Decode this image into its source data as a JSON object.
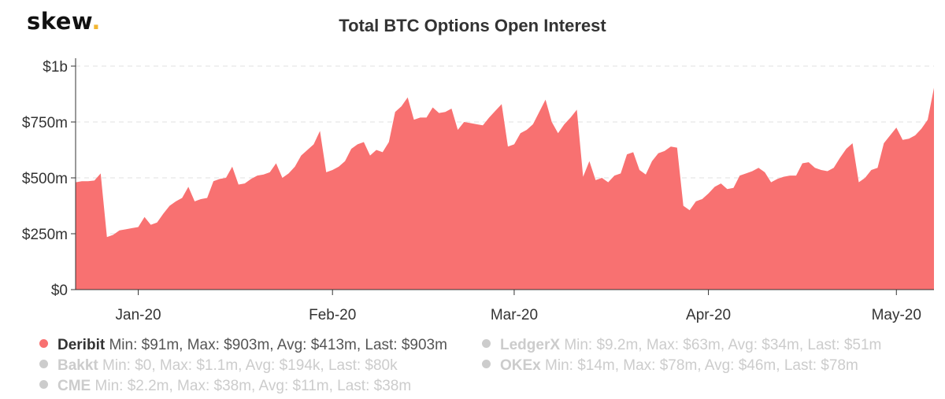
{
  "brand": {
    "name": "skew",
    "dot": ".",
    "accent": "#f2b632"
  },
  "chart_data": {
    "type": "area",
    "title": "Total BTC Options Open Interest",
    "x_tick_labels": [
      "Jan-20",
      "Feb-20",
      "Mar-20",
      "Apr-20",
      "May-20"
    ],
    "y_tick_labels": [
      "$0",
      "$250m",
      "$500m",
      "$750m",
      "$1b"
    ],
    "ylim": [
      0,
      1000
    ],
    "y_unit": "millions USD",
    "grid": true,
    "legend_position": "bottom",
    "series": [
      {
        "name": "Deribit",
        "color": "#f87171",
        "x_start": "2019-12-22",
        "x_step_days": 1,
        "values": [
          480,
          485,
          485,
          488,
          520,
          235,
          245,
          265,
          270,
          275,
          280,
          325,
          290,
          300,
          340,
          375,
          395,
          410,
          460,
          395,
          405,
          410,
          485,
          495,
          500,
          550,
          470,
          475,
          495,
          510,
          515,
          525,
          565,
          500,
          520,
          550,
          600,
          625,
          650,
          710,
          525,
          535,
          550,
          575,
          630,
          650,
          660,
          600,
          625,
          615,
          660,
          795,
          820,
          860,
          760,
          770,
          770,
          815,
          790,
          795,
          810,
          715,
          750,
          745,
          740,
          735,
          770,
          800,
          830,
          640,
          650,
          700,
          715,
          740,
          795,
          850,
          750,
          700,
          740,
          770,
          805,
          505,
          575,
          490,
          500,
          480,
          510,
          520,
          605,
          615,
          535,
          515,
          575,
          610,
          620,
          640,
          635,
          375,
          355,
          395,
          405,
          430,
          460,
          475,
          450,
          455,
          510,
          520,
          530,
          545,
          525,
          480,
          495,
          505,
          510,
          510,
          565,
          570,
          545,
          535,
          530,
          545,
          590,
          630,
          655,
          480,
          500,
          535,
          545,
          655,
          690,
          725,
          670,
          675,
          690,
          720,
          760,
          903
        ]
      },
      {
        "name": "LedgerX",
        "color": "#cccccc"
      },
      {
        "name": "Bakkt",
        "color": "#cccccc"
      },
      {
        "name": "OKEx",
        "color": "#cccccc"
      },
      {
        "name": "CME",
        "color": "#cccccc"
      }
    ]
  },
  "legend": [
    {
      "name": "Deribit",
      "stats": "Min: $91m, Max: $903m, Avg: $413m, Last: $903m",
      "active": true,
      "color": "#f87171"
    },
    {
      "name": "Bakkt",
      "stats": "Min: $0, Max: $1.1m, Avg: $194k, Last: $80k",
      "active": false,
      "color": "#cccccc"
    },
    {
      "name": "CME",
      "stats": "Min: $2.2m, Max: $38m, Avg: $11m, Last: $38m",
      "active": false,
      "color": "#cccccc"
    },
    {
      "name": "LedgerX",
      "stats": "Min: $9.2m, Max: $63m, Avg: $34m, Last: $51m",
      "active": false,
      "color": "#cccccc"
    },
    {
      "name": "OKEx",
      "stats": "Min: $14m, Max: $78m, Avg: $46m, Last: $78m",
      "active": false,
      "color": "#cccccc"
    }
  ]
}
